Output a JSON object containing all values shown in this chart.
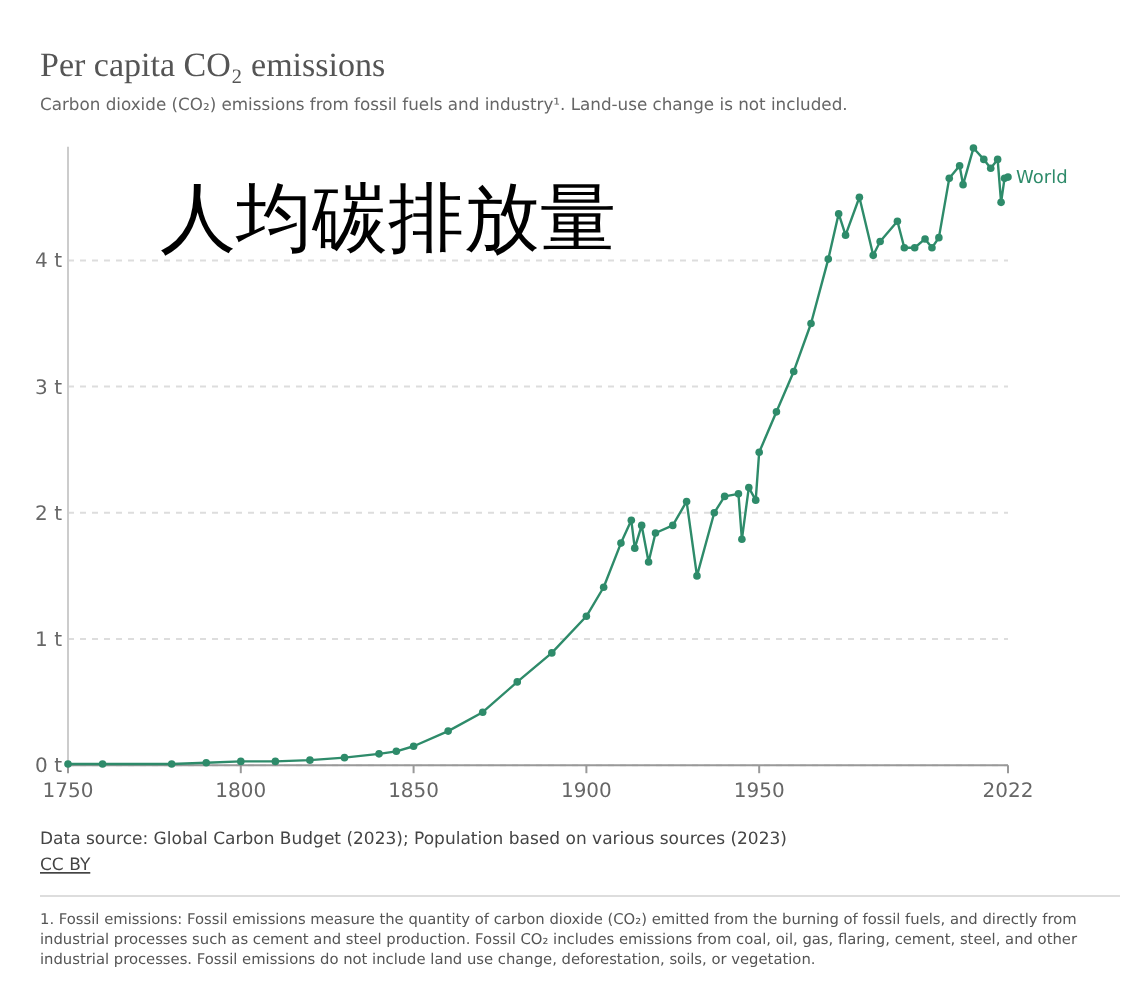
{
  "chart_data": {
    "type": "line",
    "title": "Per capita CO₂ emissions",
    "subtitle": "Carbon dioxide (CO₂) emissions from fossil fuels and industry¹. Land-use change is not included.",
    "x": [
      1750,
      1760,
      1780,
      1790,
      1800,
      1810,
      1820,
      1830,
      1840,
      1845,
      1850,
      1860,
      1870,
      1880,
      1890,
      1900,
      1905,
      1910,
      1913,
      1914,
      1916,
      1918,
      1920,
      1925,
      1929,
      1932,
      1937,
      1940,
      1944,
      1945,
      1947,
      1949,
      1950,
      1955,
      1960,
      1965,
      1970,
      1973,
      1975,
      1979,
      1983,
      1985,
      1990,
      1992,
      1995,
      1998,
      2000,
      2002,
      2005,
      2008,
      2009,
      2012,
      2015,
      2017,
      2019,
      2020,
      2021,
      2022
    ],
    "series": [
      {
        "name": "World",
        "color": "#2e8b6a",
        "values": [
          0.01,
          0.01,
          0.01,
          0.02,
          0.03,
          0.03,
          0.04,
          0.06,
          0.09,
          0.11,
          0.15,
          0.27,
          0.42,
          0.66,
          0.89,
          1.18,
          1.41,
          1.76,
          1.94,
          1.72,
          1.9,
          1.61,
          1.84,
          1.9,
          2.09,
          1.5,
          2.0,
          2.13,
          2.15,
          1.79,
          2.2,
          2.1,
          2.48,
          2.8,
          3.12,
          3.5,
          4.01,
          4.37,
          4.2,
          4.5,
          4.04,
          4.15,
          4.31,
          4.1,
          4.1,
          4.17,
          4.1,
          4.18,
          4.65,
          4.75,
          4.6,
          4.89,
          4.8,
          4.73,
          4.8,
          4.46,
          4.65,
          4.66
        ]
      }
    ],
    "xlim": [
      1750,
      2022
    ],
    "xticks": [
      1750,
      1800,
      1850,
      1900,
      1950,
      2022
    ],
    "ylim": [
      0,
      4.9
    ],
    "yticks": [
      {
        "value": 0,
        "label": "0 t"
      },
      {
        "value": 1,
        "label": "1 t"
      },
      {
        "value": 2,
        "label": "2 t"
      },
      {
        "value": 3,
        "label": "3 t"
      },
      {
        "value": 4,
        "label": "4 t"
      }
    ],
    "grid": "y",
    "marker": "circle",
    "line_style": "solid",
    "annotations": [
      "人均碳排放量",
      "Data source: Global Carbon Budget (2023); Population based on various sources (2023)",
      "CC BY",
      "1. Fossil emissions: Fossil emissions measure the quantity of carbon dioxide (CO₂) emitted from the burning of fossil fuels, and directly from industrial processes such as cement and steel production. Fossil CO₂ includes emissions from coal, oil, gas, flaring, cement, steel, and other industrial processes. Fossil emissions do not include land use change, deforestation, soils, or vegetation."
    ]
  }
}
